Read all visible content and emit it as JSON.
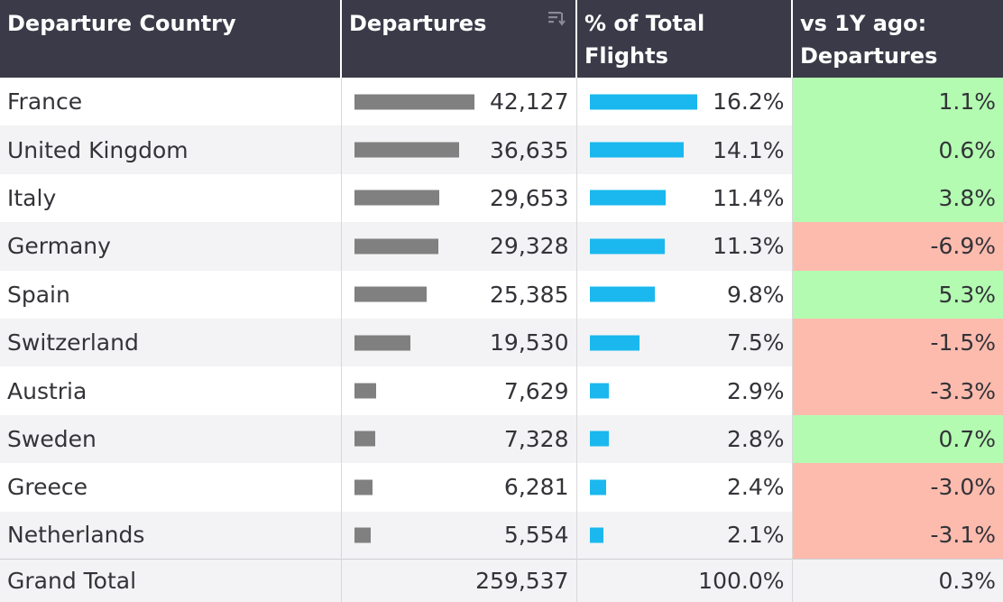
{
  "header": {
    "country": "Departure Country",
    "departures": "Departures",
    "pct": "% of Total Flights",
    "vs": "vs 1Y ago: Departures"
  },
  "rows": [
    {
      "country": "France",
      "departures": "42,127",
      "dep_value": 42127,
      "pct": "16.2%",
      "pct_value": 16.2,
      "vs": "1.1%",
      "vs_value": 1.1
    },
    {
      "country": "United Kingdom",
      "departures": "36,635",
      "dep_value": 36635,
      "pct": "14.1%",
      "pct_value": 14.1,
      "vs": "0.6%",
      "vs_value": 0.6
    },
    {
      "country": "Italy",
      "departures": "29,653",
      "dep_value": 29653,
      "pct": "11.4%",
      "pct_value": 11.4,
      "vs": "3.8%",
      "vs_value": 3.8
    },
    {
      "country": "Germany",
      "departures": "29,328",
      "dep_value": 29328,
      "pct": "11.3%",
      "pct_value": 11.3,
      "vs": "-6.9%",
      "vs_value": -6.9
    },
    {
      "country": "Spain",
      "departures": "25,385",
      "dep_value": 25385,
      "pct": "9.8%",
      "pct_value": 9.8,
      "vs": "5.3%",
      "vs_value": 5.3
    },
    {
      "country": "Switzerland",
      "departures": "19,530",
      "dep_value": 19530,
      "pct": "7.5%",
      "pct_value": 7.5,
      "vs": "-1.5%",
      "vs_value": -1.5
    },
    {
      "country": "Austria",
      "departures": "7,629",
      "dep_value": 7629,
      "pct": "2.9%",
      "pct_value": 2.9,
      "vs": "-3.3%",
      "vs_value": -3.3
    },
    {
      "country": "Sweden",
      "departures": "7,328",
      "dep_value": 7328,
      "pct": "2.8%",
      "pct_value": 2.8,
      "vs": "0.7%",
      "vs_value": 0.7
    },
    {
      "country": "Greece",
      "departures": "6,281",
      "dep_value": 6281,
      "pct": "2.4%",
      "pct_value": 2.4,
      "vs": "-3.0%",
      "vs_value": -3.0
    },
    {
      "country": "Netherlands",
      "departures": "5,554",
      "dep_value": 5554,
      "pct": "2.1%",
      "pct_value": 2.1,
      "vs": "-3.1%",
      "vs_value": -3.1
    }
  ],
  "total": {
    "label": "Grand Total",
    "departures": "259,537",
    "pct": "100.0%",
    "vs": "0.3%"
  },
  "icons": {
    "sort": "sort-descending-icon"
  },
  "colors": {
    "header_bg": "#3a3a48",
    "departures_bar": "#808080",
    "pct_bar": "#1ab8ee",
    "positive": "#b3fbb1",
    "negative": "#fdbbae"
  }
}
